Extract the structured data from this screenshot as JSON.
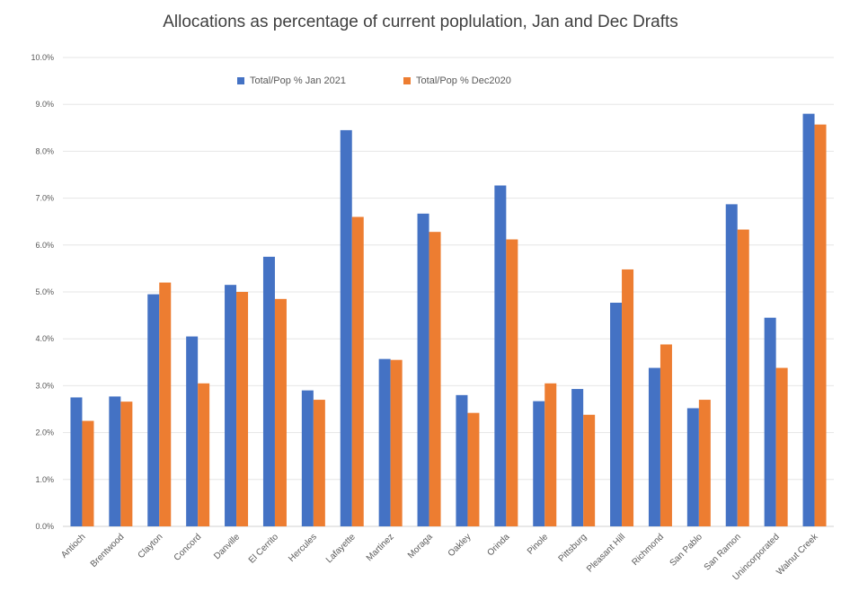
{
  "chart_data": {
    "type": "bar",
    "title": "Allocations as percentage of current poplulation, Jan and Dec Drafts",
    "xlabel": "",
    "ylabel": "",
    "ylim": [
      0,
      10
    ],
    "y_ticks": [
      "0.0%",
      "1.0%",
      "2.0%",
      "3.0%",
      "4.0%",
      "5.0%",
      "6.0%",
      "7.0%",
      "8.0%",
      "9.0%",
      "10.0%"
    ],
    "grid": true,
    "legend_position": "top",
    "categories": [
      "Antioch",
      "Brentwood",
      "Clayton",
      "Concord",
      "Danville",
      "El Cerrito",
      "Hercules",
      "Lafayette",
      "Martinez",
      "Moraga",
      "Oakley",
      "Orinda",
      "Pinole",
      "Pittsburg",
      "Pleasant Hill",
      "Richmond",
      "San Pablo",
      "San Ramon",
      "Unincorporated",
      "Walnut Creek"
    ],
    "series": [
      {
        "name": "Total/Pop % Jan 2021",
        "color": "#4472C4",
        "values": [
          2.75,
          2.77,
          4.95,
          4.05,
          5.15,
          5.75,
          2.9,
          8.45,
          3.57,
          6.67,
          2.8,
          7.27,
          2.67,
          2.93,
          4.77,
          3.38,
          2.52,
          6.87,
          4.45,
          8.8
        ]
      },
      {
        "name": "Total/Pop % Dec2020",
        "color": "#ED7D31",
        "values": [
          2.25,
          2.66,
          5.2,
          3.05,
          5.0,
          4.85,
          2.7,
          6.6,
          3.55,
          6.28,
          2.42,
          6.12,
          3.05,
          2.38,
          5.48,
          3.88,
          2.7,
          6.33,
          3.38,
          8.57
        ]
      }
    ]
  }
}
